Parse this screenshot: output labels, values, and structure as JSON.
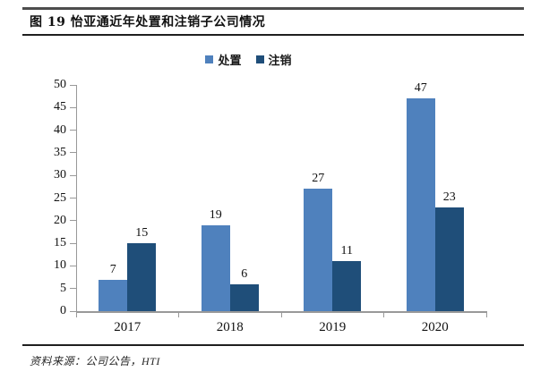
{
  "figure": {
    "title": "图 19 怡亚通近年处置和注销子公司情况",
    "source": "资料来源：公司公告，HTI"
  },
  "chart_data": {
    "type": "bar",
    "title": "图 19 怡亚通近年处置和注销子公司情况",
    "categories": [
      "2017",
      "2018",
      "2019",
      "2020"
    ],
    "series": [
      {
        "name": "处置",
        "color": "#4F81BD",
        "values": [
          7,
          19,
          27,
          47
        ]
      },
      {
        "name": "注销",
        "color": "#1F4E79",
        "values": [
          15,
          6,
          11,
          23
        ]
      }
    ],
    "xlabel": "",
    "ylabel": "",
    "ylim": [
      0,
      50
    ],
    "yticks": [
      0,
      5,
      10,
      15,
      20,
      25,
      30,
      35,
      40,
      45,
      50
    ],
    "grid": false,
    "legend_position": "top-center",
    "value_labels": true,
    "axis_color": "#999999"
  }
}
